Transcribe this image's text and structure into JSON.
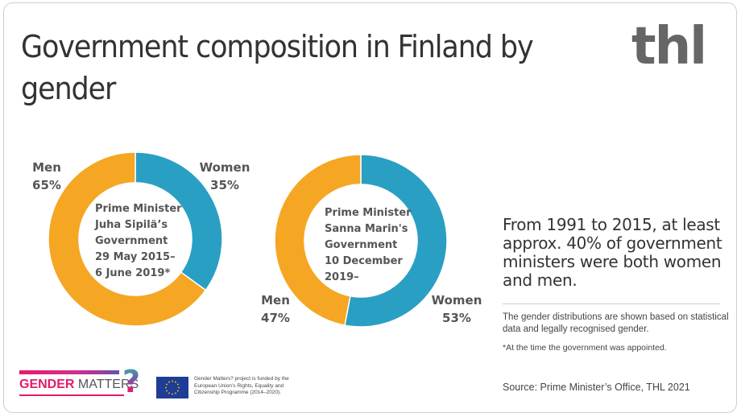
{
  "title": "Government composition in Finland by gender",
  "logo": "thl",
  "colors": {
    "men": "#F5A623",
    "women": "#2A9FC4",
    "text": "#555555"
  },
  "chart_data": [
    {
      "type": "pie",
      "variant": "donut",
      "title": "Prime Minister Juha Sipilä’s Government 29 May 2015– 6 June 2019*",
      "center_lines": [
        "Prime Minister",
        "Juha Sipilä’s",
        "Government",
        "29 May 2015–",
        "6 June 2019*"
      ],
      "slices": [
        {
          "label": "Women",
          "value": 35,
          "value_label": "35%",
          "color": "#2A9FC4"
        },
        {
          "label": "Men",
          "value": 65,
          "value_label": "65%",
          "color": "#F5A623"
        }
      ]
    },
    {
      "type": "pie",
      "variant": "donut",
      "title": "Prime Minister Sanna Marin's Government 10 December 2019–",
      "center_lines": [
        "Prime Minister",
        "Sanna Marin's",
        "Government",
        "10 December",
        "2019–"
      ],
      "slices": [
        {
          "label": "Women",
          "value": 53,
          "value_label": "53%",
          "color": "#2A9FC4"
        },
        {
          "label": "Men",
          "value": 47,
          "value_label": "47%",
          "color": "#F5A623"
        }
      ]
    }
  ],
  "headline": "From 1991 to 2015, at least approx. 40% of government ministers were both women and men.",
  "note": "The gender distributions are shown based on statistical data and legally recognised gender.",
  "footnote": "*At the time the government was appointed.",
  "source": "Source: Prime Minister’s Office, THL 2021",
  "footer": {
    "gm_logo_bold": "GENDER",
    "gm_logo_light": "MATTERS",
    "gm_logo_mark": "?",
    "eu_text": "Gender Matters? project is funded by the European Union’s Rights, Equality and Citizenship Programme (2014–2020)."
  }
}
